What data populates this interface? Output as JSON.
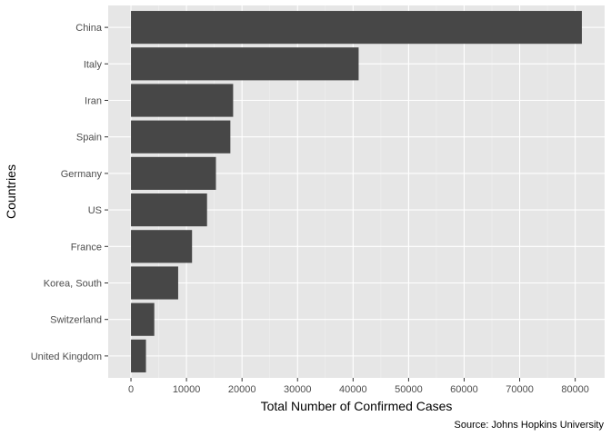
{
  "chart_data": {
    "type": "bar",
    "orientation": "horizontal",
    "categories": [
      "United Kingdom",
      "Switzerland",
      "Korea, South",
      "France",
      "US",
      "Germany",
      "Spain",
      "Iran",
      "Italy",
      "China"
    ],
    "values": [
      2700,
      4200,
      8500,
      11000,
      13700,
      15300,
      17900,
      18400,
      41000,
      81200
    ],
    "xlabel": "Total Number of Confirmed Cases",
    "ylabel": "Countries",
    "caption": "Source: Johns Hopkins University",
    "xlim": [
      -4100,
      85300
    ],
    "xticks": [
      0,
      10000,
      20000,
      30000,
      40000,
      50000,
      60000,
      70000,
      80000
    ],
    "xtick_labels": [
      "0",
      "10000",
      "20000",
      "30000",
      "40000",
      "50000",
      "60000",
      "70000",
      "80000"
    ],
    "grid": true,
    "colors": {
      "bar": "#474747",
      "panel": "#e6e6e6",
      "grid_major": "#ffffff",
      "grid_minor": "#f2f2f2",
      "tick": "#4d4d4d"
    }
  }
}
